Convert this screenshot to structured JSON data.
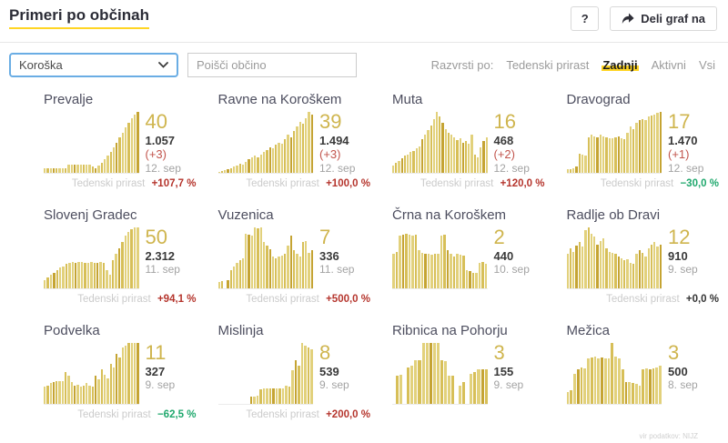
{
  "header": {
    "title": "Primeri po občinah",
    "help_label": "?",
    "share_label": "Deli graf na"
  },
  "filters": {
    "region_selected": "Koroška",
    "search_placeholder": "Poišči občino",
    "sort_label": "Razvrsti po:",
    "sort_options": [
      {
        "label": "Tedenski prirast",
        "active": false
      },
      {
        "label": "Zadnji",
        "active": true
      },
      {
        "label": "Aktivni",
        "active": false
      },
      {
        "label": "Vsi",
        "active": false
      }
    ]
  },
  "labels": {
    "weekly_growth": "Tedenski prirast"
  },
  "colors": {
    "accent_yellow": "#ffd524",
    "bar_light": "#e2d17c",
    "bar_mid": "#d7bf58",
    "bar_dark": "#c5a433",
    "gold_number": "#cfb54e",
    "red": "#b5352d",
    "delta_red": "#c2554d",
    "green": "#1fa86d",
    "focus_blue": "#6aade4"
  },
  "cards": [
    {
      "name": "Prevalje",
      "latest": "40",
      "total": "1.057",
      "delta": "(+3)",
      "date": "12. sep",
      "growth": {
        "value": "+107,7 %",
        "trend": "red"
      },
      "bars": [
        8,
        8,
        8,
        8,
        8,
        8,
        8,
        8,
        13,
        13,
        13,
        13,
        13,
        13,
        13,
        13,
        10,
        8,
        12,
        16,
        22,
        28,
        35,
        42,
        50,
        58,
        66,
        74,
        82,
        90,
        96,
        100
      ]
    },
    {
      "name": "Ravne na Koroškem",
      "latest": "39",
      "total": "1.494",
      "delta": "(+3)",
      "date": "12. sep",
      "growth": {
        "value": "+100,0 %",
        "trend": "red"
      },
      "bars": [
        2,
        3,
        4,
        6,
        8,
        10,
        12,
        15,
        14,
        18,
        22,
        25,
        28,
        26,
        30,
        34,
        38,
        42,
        40,
        46,
        50,
        48,
        55,
        62,
        58,
        68,
        76,
        84,
        80,
        90,
        100,
        96
      ]
    },
    {
      "name": "Muta",
      "latest": "16",
      "total": "468",
      "delta": "(+2)",
      "date": "12. sep",
      "growth": {
        "value": "+120,0 %",
        "trend": "red"
      },
      "bars": [
        12,
        16,
        20,
        24,
        28,
        30,
        34,
        36,
        40,
        44,
        55,
        62,
        70,
        78,
        88,
        100,
        92,
        82,
        72,
        66,
        62,
        58,
        54,
        56,
        50,
        52,
        48,
        62,
        30,
        26,
        42,
        52,
        58
      ]
    },
    {
      "name": "Dravograd",
      "latest": "17",
      "total": "1.470",
      "delta": "(+1)",
      "date": "12. sep",
      "growth": {
        "value": "−30,0 %",
        "trend": "green"
      },
      "bars": [
        6,
        6,
        8,
        10,
        32,
        30,
        28,
        58,
        62,
        60,
        58,
        62,
        60,
        58,
        57,
        56,
        58,
        60,
        57,
        55,
        66,
        76,
        72,
        82,
        86,
        88,
        86,
        92,
        94,
        96,
        98,
        100
      ]
    },
    {
      "name": "Slovenj Gradec",
      "latest": "50",
      "total": "2.312",
      "delta": null,
      "date": "11. sep",
      "growth": {
        "value": "+94,1 %",
        "trend": "red"
      },
      "bars": [
        14,
        18,
        22,
        26,
        30,
        34,
        36,
        40,
        42,
        44,
        42,
        44,
        43,
        42,
        42,
        43,
        42,
        42,
        43,
        42,
        30,
        22,
        46,
        56,
        66,
        76,
        86,
        92,
        97,
        100,
        100
      ]
    },
    {
      "name": "Vuzenica",
      "latest": "7",
      "total": "336",
      "delta": null,
      "date": "11. sep",
      "growth": {
        "value": "+500,0 %",
        "trend": "red"
      },
      "bars": [
        10,
        12,
        0,
        14,
        30,
        36,
        42,
        46,
        50,
        90,
        88,
        86,
        100,
        98,
        100,
        76,
        70,
        64,
        52,
        50,
        52,
        54,
        56,
        70,
        86,
        62,
        56,
        52,
        76,
        78,
        58,
        62
      ]
    },
    {
      "name": "Črna na Koroškem",
      "latest": "2",
      "total": "440",
      "delta": null,
      "date": "10. sep",
      "growth": null,
      "bars": [
        56,
        60,
        86,
        88,
        90,
        88,
        87,
        88,
        62,
        58,
        57,
        56,
        55,
        57,
        56,
        86,
        88,
        62,
        56,
        52,
        56,
        55,
        54,
        30,
        28,
        26,
        25,
        42,
        44,
        40
      ]
    },
    {
      "name": "Radlje ob Dravi",
      "latest": "12",
      "total": "910",
      "delta": null,
      "date": "9. sep",
      "growth": {
        "value": "+0,0 %",
        "trend": "dark"
      },
      "bars": [
        56,
        66,
        60,
        70,
        76,
        68,
        95,
        100,
        90,
        85,
        72,
        78,
        82,
        66,
        60,
        58,
        56,
        52,
        50,
        46,
        48,
        42,
        40,
        56,
        62,
        58,
        52,
        66,
        72,
        76,
        68,
        72
      ]
    },
    {
      "name": "Podvelka",
      "latest": "11",
      "total": "327",
      "delta": null,
      "date": "9. sep",
      "growth": {
        "value": "−62,5 %",
        "trend": "green"
      },
      "bars": [
        28,
        30,
        34,
        36,
        38,
        38,
        38,
        52,
        46,
        36,
        30,
        32,
        28,
        30,
        34,
        30,
        28,
        46,
        40,
        56,
        48,
        42,
        66,
        60,
        82,
        76,
        92,
        96,
        100,
        100,
        100,
        100
      ]
    },
    {
      "name": "Mislinja",
      "latest": "8",
      "total": "539",
      "delta": null,
      "date": "9. sep",
      "growth": {
        "value": "+200,0 %",
        "trend": "red"
      },
      "bars": [
        0,
        0,
        0,
        0,
        0,
        0,
        0,
        0,
        0,
        0,
        12,
        12,
        14,
        24,
        25,
        26,
        26,
        26,
        26,
        25,
        26,
        30,
        28,
        55,
        72,
        62,
        100,
        95,
        92,
        90
      ]
    },
    {
      "name": "Ribnica na Pohorju",
      "latest": "3",
      "total": "155",
      "delta": null,
      "date": "9. sep",
      "growth": null,
      "bars": [
        0,
        46,
        48,
        0,
        60,
        62,
        72,
        72,
        100,
        100,
        100,
        100,
        100,
        72,
        70,
        46,
        46,
        0,
        30,
        36,
        0,
        50,
        52,
        56,
        56,
        56
      ]
    },
    {
      "name": "Mežica",
      "latest": "3",
      "total": "500",
      "delta": null,
      "date": "8. sep",
      "growth": null,
      "bars": [
        20,
        22,
        50,
        56,
        60,
        58,
        74,
        76,
        78,
        75,
        76,
        75,
        74,
        100,
        78,
        74,
        56,
        36,
        36,
        35,
        33,
        30,
        56,
        58,
        56,
        58,
        60,
        62
      ]
    }
  ],
  "footer": {
    "source": "vir podatkov: NIJZ"
  }
}
